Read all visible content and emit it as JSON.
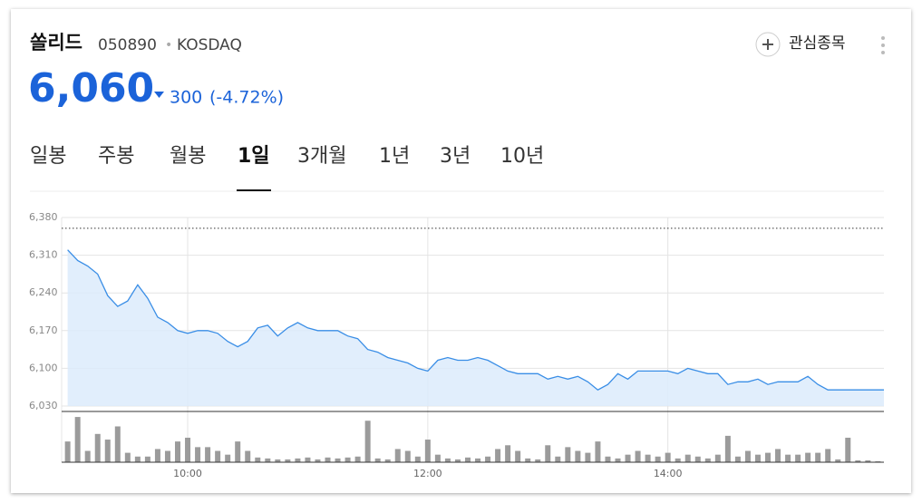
{
  "header": {
    "name": "쏠리드",
    "code": "050890",
    "separator": "•",
    "market": "KOSDAQ",
    "watch": "관심종목"
  },
  "quote": {
    "price": "6,060",
    "change": 300,
    "change_pct": "(-4.72%)"
  },
  "tabs": {
    "items": [
      "일봉",
      "주봉",
      "월봉",
      "1일",
      "3개월",
      "1년",
      "3년",
      "10년"
    ],
    "active": 3
  },
  "chart_data": {
    "type": "line",
    "x": [
      540,
      545,
      550,
      555,
      560,
      565,
      570,
      575,
      580,
      585,
      590,
      595,
      600,
      605,
      610,
      615,
      620,
      625,
      630,
      635,
      640,
      645,
      650,
      655,
      660,
      665,
      670,
      675,
      680,
      685,
      690,
      695,
      700,
      705,
      710,
      715,
      720,
      725,
      730,
      735,
      740,
      745,
      750,
      755,
      760,
      765,
      770,
      775,
      780,
      785,
      790,
      795,
      800,
      805,
      810,
      815,
      820,
      825,
      830,
      835,
      840,
      845,
      850,
      855,
      860,
      865,
      870,
      875,
      880,
      885,
      890,
      895,
      900,
      905,
      910,
      915,
      920,
      925,
      930,
      935,
      940,
      945
    ],
    "series": [
      {
        "name": "price",
        "color": "#3a8ee6",
        "fill": "#dcebfb",
        "values": [
          6320,
          6300,
          6290,
          6275,
          6235,
          6215,
          6225,
          6255,
          6230,
          6195,
          6185,
          6170,
          6165,
          6170,
          6170,
          6165,
          6150,
          6140,
          6150,
          6175,
          6180,
          6160,
          6175,
          6185,
          6175,
          6170,
          6170,
          6170,
          6160,
          6155,
          6135,
          6130,
          6120,
          6115,
          6110,
          6100,
          6095,
          6115,
          6120,
          6115,
          6115,
          6120,
          6115,
          6105,
          6095,
          6090,
          6090,
          6090,
          6080,
          6085,
          6080,
          6085,
          6075,
          6060,
          6070,
          6090,
          6080,
          6095,
          6095,
          6095,
          6095,
          6090,
          6100,
          6095,
          6090,
          6090,
          6070,
          6075,
          6075,
          6080,
          6070,
          6075,
          6075,
          6075,
          6085,
          6070,
          6060,
          6060,
          6060,
          6060,
          6060,
          6060
        ]
      },
      {
        "name": "volume",
        "type": "bar",
        "axis": "y2",
        "color": "#9b9b9b",
        "values": [
          22,
          48,
          12,
          30,
          24,
          38,
          10,
          6,
          6,
          14,
          12,
          22,
          26,
          16,
          16,
          12,
          8,
          22,
          12,
          5,
          4,
          3,
          3,
          4,
          5,
          3,
          5,
          4,
          5,
          6,
          44,
          4,
          3,
          14,
          12,
          6,
          24,
          8,
          4,
          3,
          5,
          4,
          6,
          14,
          18,
          12,
          4,
          3,
          18,
          6,
          16,
          12,
          10,
          22,
          6,
          4,
          8,
          12,
          8,
          6,
          10,
          4,
          8,
          6,
          4,
          8,
          28,
          6,
          12,
          8,
          10,
          14,
          8,
          8,
          10,
          10,
          14,
          3,
          26,
          2,
          2,
          1
        ]
      }
    ],
    "reference_line": 6360,
    "xlim": [
      537,
      948
    ],
    "xticks": [
      {
        "value": 600,
        "label": "10:00"
      },
      {
        "value": 720,
        "label": "12:00"
      },
      {
        "value": 840,
        "label": "14:00"
      }
    ],
    "ylim": [
      6030,
      6380
    ],
    "yticks": [
      {
        "value": 6030,
        "label": "6,030"
      },
      {
        "value": 6100,
        "label": "6,100"
      },
      {
        "value": 6170,
        "label": "6,170"
      },
      {
        "value": 6240,
        "label": "6,240"
      },
      {
        "value": 6310,
        "label": "6,310"
      },
      {
        "value": 6380,
        "label": "6,380"
      }
    ],
    "y2lim": [
      0,
      50
    ],
    "grid": true
  }
}
